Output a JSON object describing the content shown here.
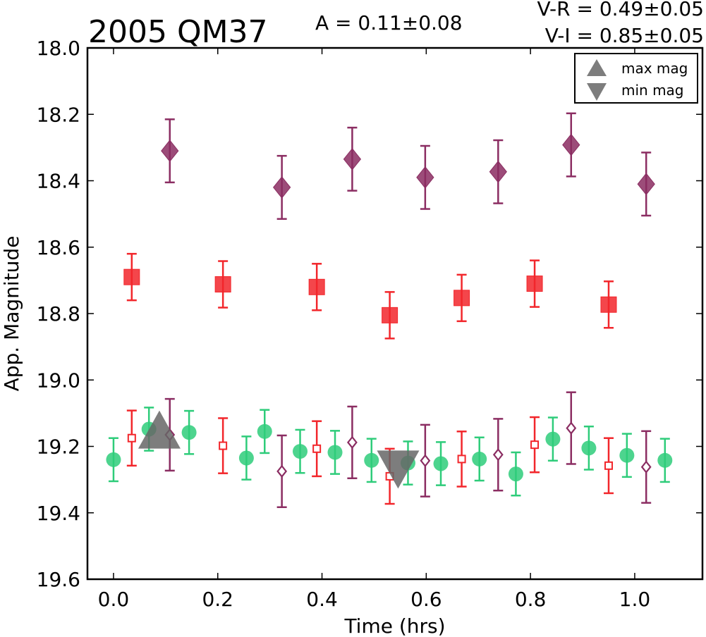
{
  "header": {
    "title": "2005 QM37",
    "amplitude": "A  = 0.11±0.08",
    "vr": "V-R = 0.49±0.05",
    "vi": "V-I  = 0.85±0.05"
  },
  "legend": {
    "max_label": "max mag",
    "min_label": "min mag"
  },
  "colors": {
    "purple": "#8B2D62",
    "red": "#F2262B",
    "green": "#2ECC7A",
    "gray": "#666666"
  },
  "chart_data": {
    "type": "scatter",
    "title": "2005 QM37",
    "xlabel": "Time (hrs)",
    "ylabel": "App. Magnitude",
    "xlim": [
      -0.05,
      1.13
    ],
    "ylim": [
      19.6,
      18.0
    ],
    "y_inverted": true,
    "xticks": [
      "0.0",
      "0.2",
      "0.4",
      "0.6",
      "0.8",
      "1.0"
    ],
    "yticks": [
      "18.0",
      "18.2",
      "18.4",
      "18.6",
      "18.8",
      "19.0",
      "19.2",
      "19.4",
      "19.6"
    ],
    "grid": false,
    "legend_position": "top-right",
    "series": [
      {
        "marker": "diamond-filled",
        "color": "#8B2D62",
        "error": 0.095,
        "points": [
          [
            0.108,
            18.31
          ],
          [
            0.323,
            18.42
          ],
          [
            0.458,
            18.335
          ],
          [
            0.598,
            18.39
          ],
          [
            0.738,
            18.373
          ],
          [
            0.878,
            18.292
          ],
          [
            1.022,
            18.41
          ]
        ]
      },
      {
        "marker": "square-filled",
        "color": "#F2262B",
        "error": 0.07,
        "points": [
          [
            0.035,
            18.69
          ],
          [
            0.21,
            18.712
          ],
          [
            0.39,
            18.72
          ],
          [
            0.53,
            18.805
          ],
          [
            0.668,
            18.753
          ],
          [
            0.808,
            18.71
          ],
          [
            0.95,
            18.773
          ]
        ]
      },
      {
        "marker": "circle-filled",
        "color": "#2ECC7A",
        "error": 0.065,
        "points": [
          [
            0.0,
            19.24
          ],
          [
            0.068,
            19.148
          ],
          [
            0.145,
            19.158
          ],
          [
            0.255,
            19.235
          ],
          [
            0.29,
            19.155
          ],
          [
            0.358,
            19.215
          ],
          [
            0.425,
            19.218
          ],
          [
            0.495,
            19.242
          ],
          [
            0.565,
            19.25
          ],
          [
            0.628,
            19.252
          ],
          [
            0.702,
            19.238
          ],
          [
            0.772,
            19.283
          ],
          [
            0.843,
            19.178
          ],
          [
            0.912,
            19.205
          ],
          [
            0.985,
            19.227
          ],
          [
            1.058,
            19.242
          ]
        ]
      },
      {
        "marker": "square-open",
        "color": "#F2262B",
        "error": 0.083,
        "points": [
          [
            0.035,
            19.175
          ],
          [
            0.21,
            19.198
          ],
          [
            0.39,
            19.207
          ],
          [
            0.53,
            19.29
          ],
          [
            0.668,
            19.238
          ],
          [
            0.808,
            19.195
          ],
          [
            0.95,
            19.258
          ]
        ]
      },
      {
        "marker": "diamond-open",
        "color": "#8B2D62",
        "error": 0.108,
        "points": [
          [
            0.108,
            19.165
          ],
          [
            0.323,
            19.275
          ],
          [
            0.458,
            19.188
          ],
          [
            0.598,
            19.243
          ],
          [
            0.738,
            19.225
          ],
          [
            0.878,
            19.145
          ],
          [
            1.022,
            19.262
          ]
        ]
      }
    ],
    "max_mag": {
      "x": 0.088,
      "y": 19.16
    },
    "min_mag": {
      "x": 0.546,
      "y": 19.255
    }
  }
}
